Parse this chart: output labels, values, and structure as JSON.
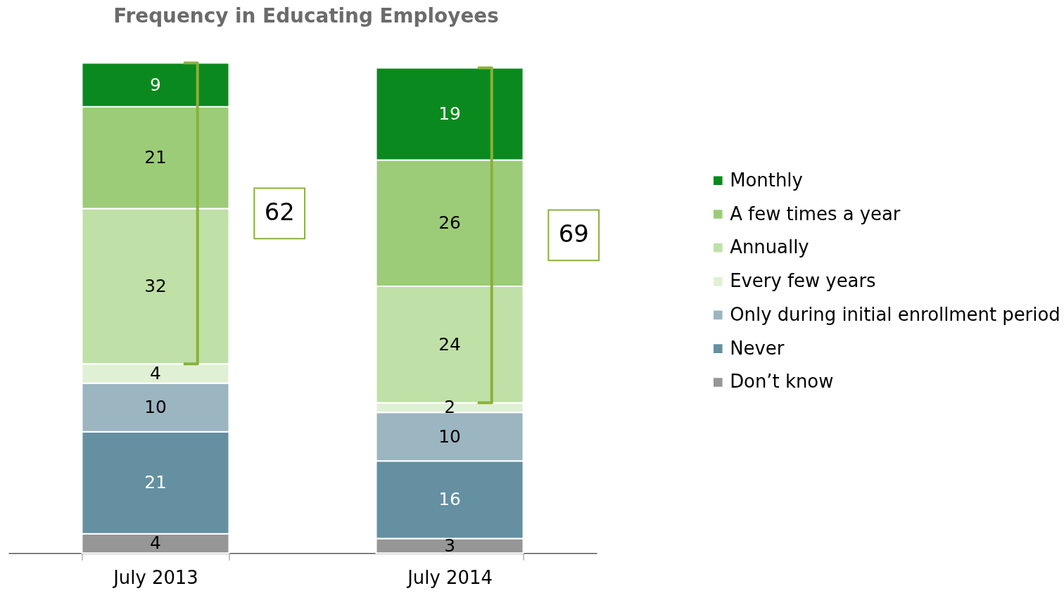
{
  "chart_data": {
    "type": "bar",
    "stacked": true,
    "title": "Frequency in Educating Employees",
    "categories": [
      "July 2013",
      "July 2014"
    ],
    "series": [
      {
        "name": "Don’t know",
        "color": "#969696",
        "values": [
          4,
          3
        ]
      },
      {
        "name": "Never",
        "color": "#6490a2",
        "values": [
          21,
          16
        ]
      },
      {
        "name": "Only during initial enrollment period",
        "color": "#9bb5c1",
        "values": [
          10,
          10
        ]
      },
      {
        "name": "Every few years",
        "color": "#e0f0d5",
        "values": [
          4,
          2
        ]
      },
      {
        "name": "Annually",
        "color": "#bfe0a6",
        "values": [
          32,
          24
        ]
      },
      {
        "name": "A few times a year",
        "color": "#9ccc78",
        "values": [
          21,
          26
        ]
      },
      {
        "name": "Monthly",
        "color": "#0a8a1e",
        "values": [
          9,
          19
        ]
      }
    ],
    "data_labels": true,
    "legend": "right",
    "grid": false,
    "annotations": [
      "62",
      "69"
    ]
  }
}
